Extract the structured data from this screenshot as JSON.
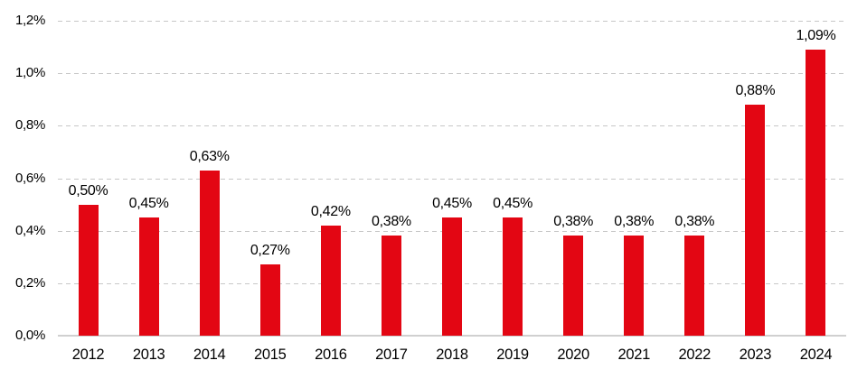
{
  "chart_data": {
    "type": "bar",
    "title": "",
    "xlabel": "",
    "ylabel": "",
    "legend": "none",
    "grid": "horizontal-dashed",
    "categories": [
      "2012",
      "2013",
      "2014",
      "2015",
      "2016",
      "2017",
      "2018",
      "2019",
      "2020",
      "2021",
      "2022",
      "2023",
      "2024"
    ],
    "values": [
      0.5,
      0.45,
      0.63,
      0.27,
      0.42,
      0.38,
      0.45,
      0.45,
      0.38,
      0.38,
      0.38,
      0.88,
      1.09
    ],
    "value_labels": [
      "0,50%",
      "0,45%",
      "0,63%",
      "0,27%",
      "0,42%",
      "0,38%",
      "0,45%",
      "0,45%",
      "0,38%",
      "0,38%",
      "0,38%",
      "0,88%",
      "1,09%"
    ],
    "y_ticks": [
      {
        "value": 0.0,
        "label": "0,0%"
      },
      {
        "value": 0.2,
        "label": "0,2%"
      },
      {
        "value": 0.4,
        "label": "0,4%"
      },
      {
        "value": 0.6,
        "label": "0,6%"
      },
      {
        "value": 0.8,
        "label": "0,8%"
      },
      {
        "value": 1.0,
        "label": "1,0%"
      },
      {
        "value": 1.2,
        "label": "1,2%"
      }
    ],
    "ylim": [
      0,
      1.2
    ],
    "colors": {
      "bar": "#e30613",
      "gridline": "#c7c7c7",
      "axis_line": "#d0d0d0",
      "text": "#000000",
      "background": "#ffffff"
    }
  }
}
